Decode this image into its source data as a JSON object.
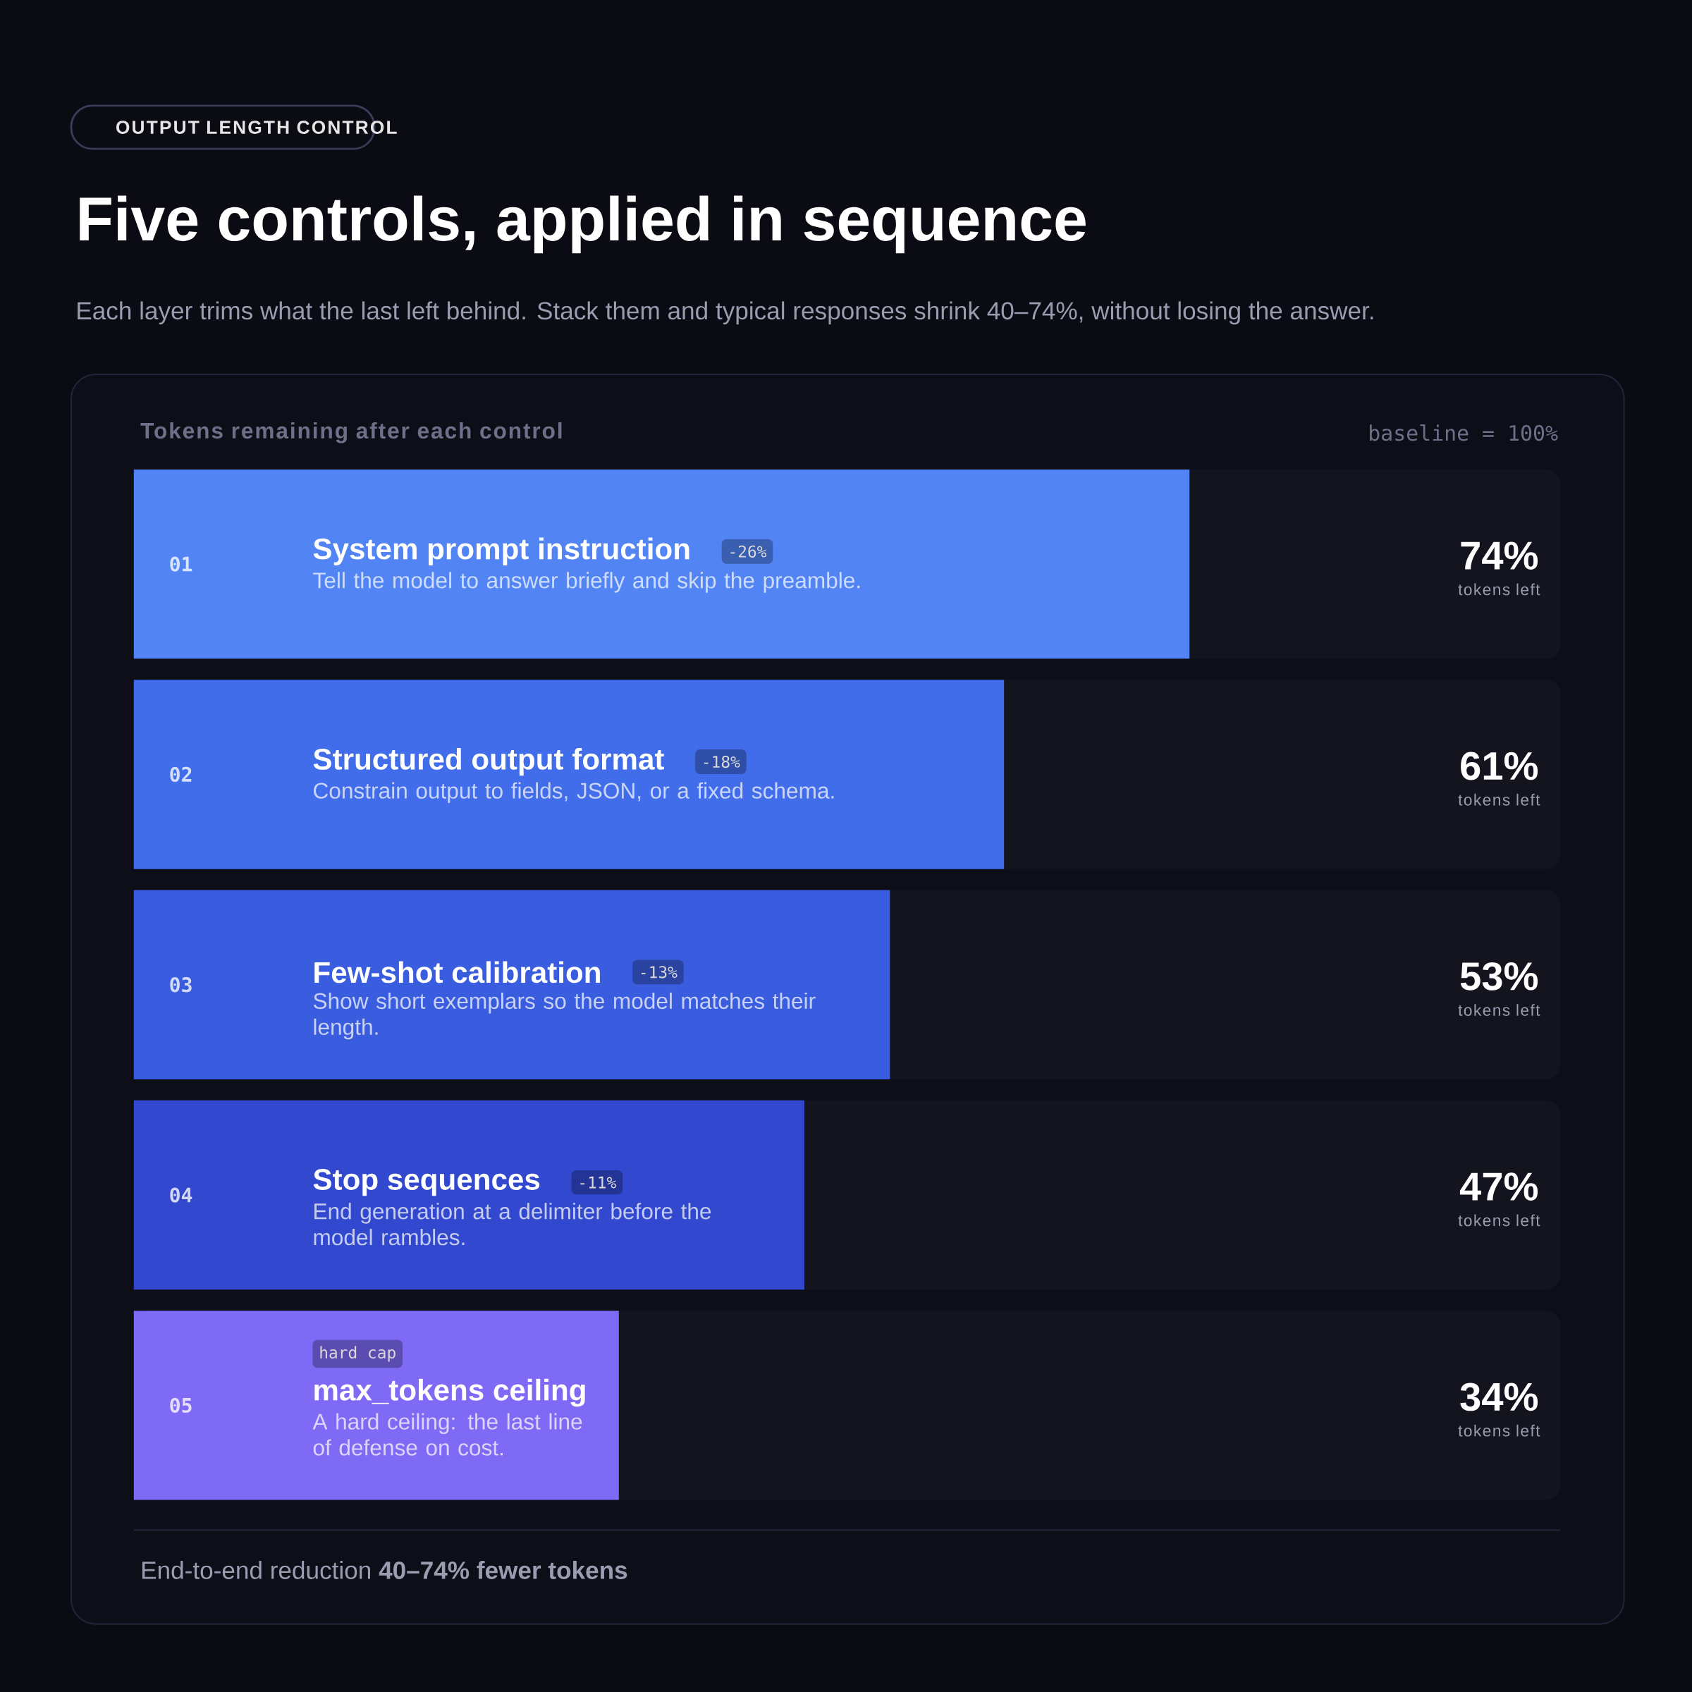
{
  "chart_data": {
    "type": "bar",
    "orientation": "horizontal",
    "title": "Five controls, applied in sequence",
    "subtitle": "Each layer trims what the last left behind. Stack them and typical responses shrink 40–74%, without losing the answer.",
    "xlabel": "Tokens remaining after each control",
    "categories": [
      "System prompt instruction",
      "Structured output format",
      "Few-shot calibration",
      "Stop sequences",
      "max_tokens ceiling"
    ],
    "values": [
      74,
      61,
      53,
      47,
      34
    ],
    "colors": [
      "#5284f4",
      "#416cea",
      "#3a5ddf",
      "#3148cf",
      "#7f6af6"
    ],
    "value_labels": [
      "74%",
      "61%",
      "53%",
      "47%",
      "34%"
    ],
    "xlim": [
      0,
      100
    ],
    "tick_labels": "y",
    "annotations": [
      "OUTPUT LENGTH CONTROL",
      "baseline = 100%",
      "End-to-end reduction **40–74% fewer tokens**",
      "01",
      "-26%",
      "Tell the model to answer briefly and skip the preamble.",
      "tokens left",
      "02",
      "-18%",
      "Constrain output to fields, JSON, or a fixed schema.",
      "tokens left",
      "03",
      "-13%",
      "Show short exemplars so the model matches their length.",
      "tokens left",
      "04",
      "-11%",
      "End generation at a delimiter before the model rambles.",
      "tokens left",
      "05",
      "hard cap",
      "A hard ceiling: the last line of defense on cost.",
      "tokens left"
    ]
  }
}
